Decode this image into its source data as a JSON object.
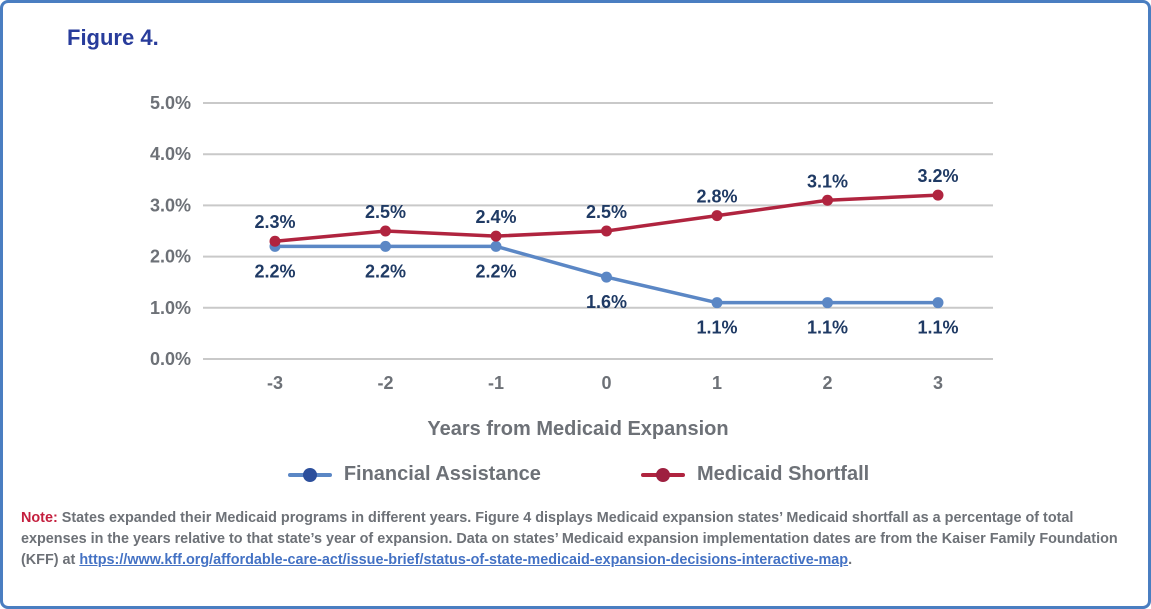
{
  "figure_label": "Figure 4.",
  "chart_data": {
    "type": "line",
    "title": "Figure 4.",
    "x": [
      -3,
      -2,
      -1,
      0,
      1,
      2,
      3
    ],
    "x_tick_labels": [
      "-3",
      "-2",
      "-1",
      "0",
      "1",
      "2",
      "3"
    ],
    "xlabel": "Years from Medicaid Expansion",
    "ylabel": "",
    "ylim": [
      0,
      5
    ],
    "y_tick_labels": [
      "0.0%",
      "1.0%",
      "2.0%",
      "3.0%",
      "4.0%",
      "5.0%"
    ],
    "grid": "horizontal",
    "legend_position": "bottom",
    "series": [
      {
        "name": "Financial Assistance",
        "color": "#5b87c5",
        "legend_dot_color": "#2c4f9c",
        "values": [
          2.2,
          2.2,
          2.2,
          1.6,
          1.1,
          1.1,
          1.1
        ],
        "labels": [
          "2.2%",
          "2.2%",
          "2.2%",
          "1.6%",
          "1.1%",
          "1.1%",
          "1.1%"
        ],
        "label_position": "below"
      },
      {
        "name": "Medicaid Shortfall",
        "color": "#b0243f",
        "legend_dot_color": "#9e2040",
        "values": [
          2.3,
          2.5,
          2.4,
          2.5,
          2.8,
          3.1,
          3.2
        ],
        "labels": [
          "2.3%",
          "2.5%",
          "2.4%",
          "2.5%",
          "2.8%",
          "3.1%",
          "3.2%"
        ],
        "label_position": "above"
      }
    ]
  },
  "colors": {
    "border": "#4a7ec1",
    "gridline": "#c9c9c9",
    "axis_text": "#6d7177",
    "data_label": "#1f3a64",
    "note_prefix": "#c41f3e",
    "link": "#4472c4"
  },
  "note": {
    "prefix": "Note:",
    "text_before_link": " States expanded their Medicaid programs in different years. Figure 4 displays Medicaid expansion states’ Medicaid shortfall as a percentage of total expenses in the years relative to that state’s year of expansion. Data on states’ Medicaid expansion implementation dates are from the Kaiser Family Foundation (KFF) at ",
    "link_text": "https://www.kff.org/affordable-care-act/issue-brief/status-of-state-medicaid-expansion-decisions-interactive-map",
    "suffix": "."
  }
}
